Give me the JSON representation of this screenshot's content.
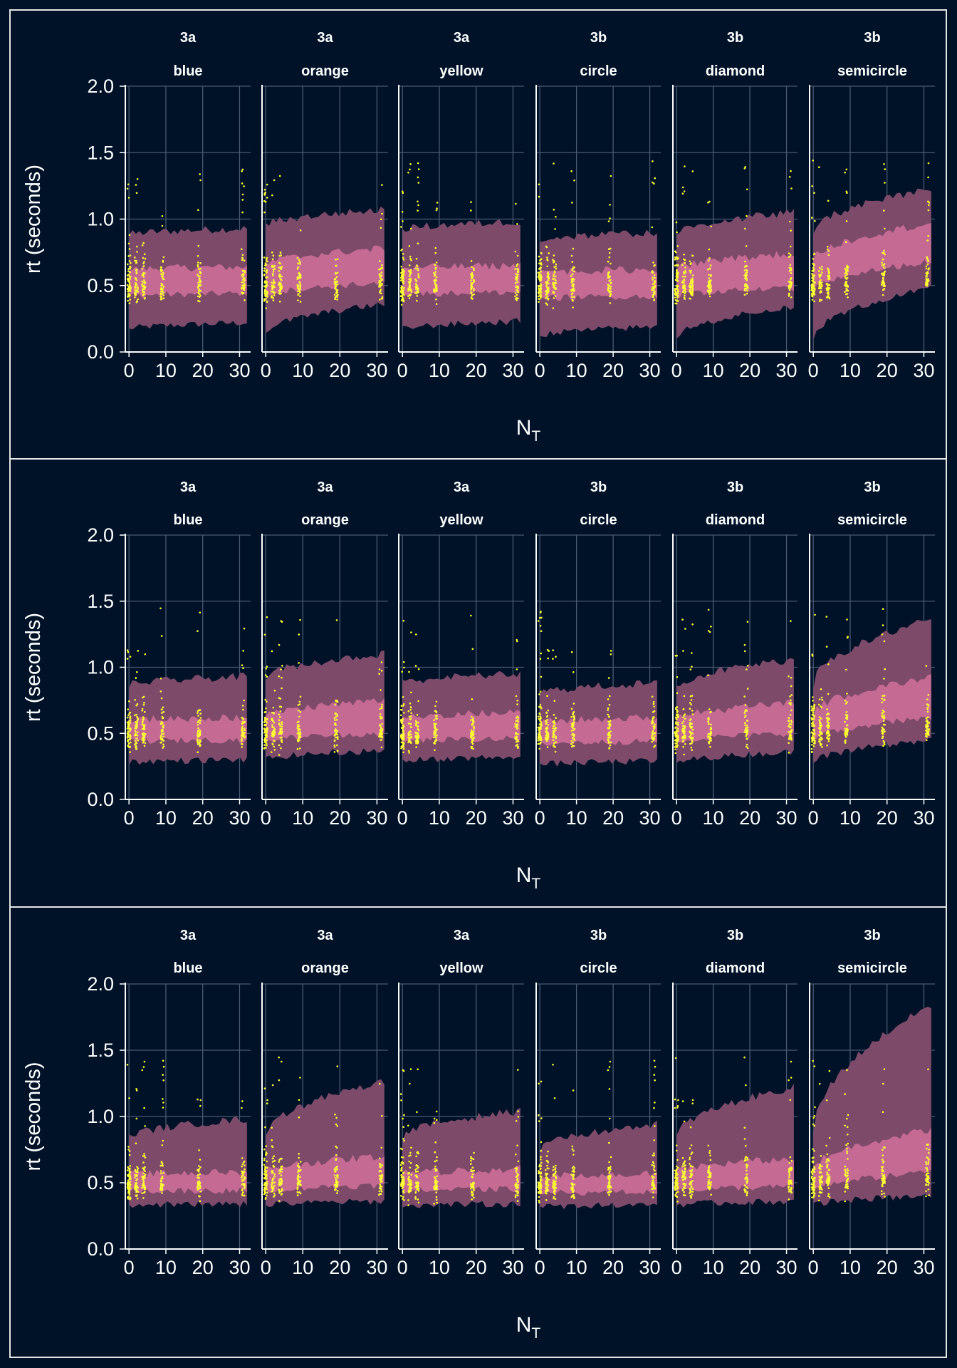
{
  "colors": {
    "background": "#001228",
    "frame": "#e6e6e6",
    "grid": "#4b5a70",
    "axis": "#ffffff",
    "text": "#ffffff",
    "outer_band": "#7d4a6a",
    "inner_band": "#c56a92",
    "points": "#ffff33"
  },
  "chart_data": [
    {
      "type": "area",
      "xlabel": "N",
      "xlabel_sub": "T",
      "ylabel": "rt (seconds)",
      "ylim": [
        0,
        2
      ],
      "xlim": [
        -1,
        33
      ],
      "yticks": [
        "0.0",
        "0.5",
        "1.0",
        "1.5",
        "2.0"
      ],
      "xticks": [
        "0",
        "10",
        "20",
        "30"
      ],
      "grid": true,
      "series": [
        {
          "panel": "3a",
          "label": "blue",
          "outer_lo": [
            0.17,
            0.22
          ],
          "inner_lo": [
            0.42,
            0.44
          ],
          "inner_hi": [
            0.62,
            0.64
          ],
          "outer_hi": [
            0.88,
            0.93
          ]
        },
        {
          "panel": "3a",
          "label": "orange",
          "outer_lo": [
            0.14,
            0.36
          ],
          "inner_lo": [
            0.42,
            0.52
          ],
          "inner_hi": [
            0.65,
            0.78
          ],
          "outer_hi": [
            0.95,
            1.07
          ]
        },
        {
          "panel": "3a",
          "label": "yellow",
          "outer_lo": [
            0.17,
            0.23
          ],
          "inner_lo": [
            0.43,
            0.45
          ],
          "inner_hi": [
            0.63,
            0.65
          ],
          "outer_hi": [
            0.92,
            0.98
          ]
        },
        {
          "panel": "3b",
          "label": "circle",
          "outer_lo": [
            0.12,
            0.19
          ],
          "inner_lo": [
            0.4,
            0.42
          ],
          "inner_hi": [
            0.6,
            0.62
          ],
          "outer_hi": [
            0.84,
            0.9
          ]
        },
        {
          "panel": "3b",
          "label": "diamond",
          "outer_lo": [
            0.1,
            0.34
          ],
          "inner_lo": [
            0.42,
            0.48
          ],
          "inner_hi": [
            0.62,
            0.74
          ],
          "outer_hi": [
            0.88,
            1.05
          ]
        },
        {
          "panel": "3b",
          "label": "semicircle",
          "outer_lo": [
            0.1,
            0.48
          ],
          "inner_lo": [
            0.45,
            0.68
          ],
          "inner_hi": [
            0.68,
            0.97
          ],
          "outer_hi": [
            0.9,
            1.22
          ]
        }
      ]
    },
    {
      "type": "area",
      "xlabel": "N",
      "xlabel_sub": "T",
      "ylabel": "rt (seconds)",
      "ylim": [
        0,
        2
      ],
      "xlim": [
        -1,
        33
      ],
      "yticks": [
        "0.0",
        "0.5",
        "1.0",
        "1.5",
        "2.0"
      ],
      "xticks": [
        "0",
        "10",
        "20",
        "30"
      ],
      "grid": true,
      "series": [
        {
          "panel": "3a",
          "label": "blue",
          "outer_lo": [
            0.28,
            0.3
          ],
          "inner_lo": [
            0.44,
            0.45
          ],
          "inner_hi": [
            0.6,
            0.62
          ],
          "outer_hi": [
            0.86,
            0.93
          ]
        },
        {
          "panel": "3a",
          "label": "orange",
          "outer_lo": [
            0.3,
            0.37
          ],
          "inner_lo": [
            0.44,
            0.5
          ],
          "inner_hi": [
            0.62,
            0.75
          ],
          "outer_hi": [
            0.92,
            1.1
          ]
        },
        {
          "panel": "3a",
          "label": "yellow",
          "outer_lo": [
            0.29,
            0.32
          ],
          "inner_lo": [
            0.44,
            0.46
          ],
          "inner_hi": [
            0.61,
            0.66
          ],
          "outer_hi": [
            0.88,
            0.95
          ]
        },
        {
          "panel": "3b",
          "label": "circle",
          "outer_lo": [
            0.26,
            0.29
          ],
          "inner_lo": [
            0.42,
            0.44
          ],
          "inner_hi": [
            0.58,
            0.62
          ],
          "outer_hi": [
            0.8,
            0.88
          ]
        },
        {
          "panel": "3b",
          "label": "diamond",
          "outer_lo": [
            0.27,
            0.36
          ],
          "inner_lo": [
            0.43,
            0.5
          ],
          "inner_hi": [
            0.6,
            0.73
          ],
          "outer_hi": [
            0.84,
            1.06
          ]
        },
        {
          "panel": "3b",
          "label": "semicircle",
          "outer_lo": [
            0.27,
            0.45
          ],
          "inner_lo": [
            0.44,
            0.62
          ],
          "inner_hi": [
            0.64,
            0.92
          ],
          "outer_hi": [
            0.86,
            1.36
          ]
        }
      ]
    },
    {
      "type": "area",
      "xlabel": "N",
      "xlabel_sub": "T",
      "ylabel": "rt (seconds)",
      "ylim": [
        0,
        2
      ],
      "xlim": [
        -1,
        33
      ],
      "yticks": [
        "0.0",
        "0.5",
        "1.0",
        "1.5",
        "2.0"
      ],
      "xticks": [
        "0",
        "10",
        "20",
        "30"
      ],
      "grid": true,
      "series": [
        {
          "panel": "3a",
          "label": "blue",
          "outer_lo": [
            0.33,
            0.34
          ],
          "inner_lo": [
            0.44,
            0.44
          ],
          "inner_hi": [
            0.56,
            0.58
          ],
          "outer_hi": [
            0.84,
            0.98
          ]
        },
        {
          "panel": "3a",
          "label": "orange",
          "outer_lo": [
            0.33,
            0.36
          ],
          "inner_lo": [
            0.44,
            0.48
          ],
          "inner_hi": [
            0.58,
            0.7
          ],
          "outer_hi": [
            0.86,
            1.26
          ]
        },
        {
          "panel": "3a",
          "label": "yellow",
          "outer_lo": [
            0.33,
            0.34
          ],
          "inner_lo": [
            0.44,
            0.45
          ],
          "inner_hi": [
            0.57,
            0.6
          ],
          "outer_hi": [
            0.84,
            1.04
          ]
        },
        {
          "panel": "3b",
          "label": "circle",
          "outer_lo": [
            0.31,
            0.34
          ],
          "inner_lo": [
            0.42,
            0.43
          ],
          "inner_hi": [
            0.54,
            0.57
          ],
          "outer_hi": [
            0.74,
            0.94
          ]
        },
        {
          "panel": "3b",
          "label": "diamond",
          "outer_lo": [
            0.33,
            0.36
          ],
          "inner_lo": [
            0.44,
            0.47
          ],
          "inner_hi": [
            0.58,
            0.68
          ],
          "outer_hi": [
            0.84,
            1.22
          ]
        },
        {
          "panel": "3b",
          "label": "semicircle",
          "outer_lo": [
            0.33,
            0.4
          ],
          "inner_lo": [
            0.44,
            0.58
          ],
          "inner_hi": [
            0.6,
            0.9
          ],
          "outer_hi": [
            0.86,
            1.84
          ]
        }
      ]
    }
  ]
}
